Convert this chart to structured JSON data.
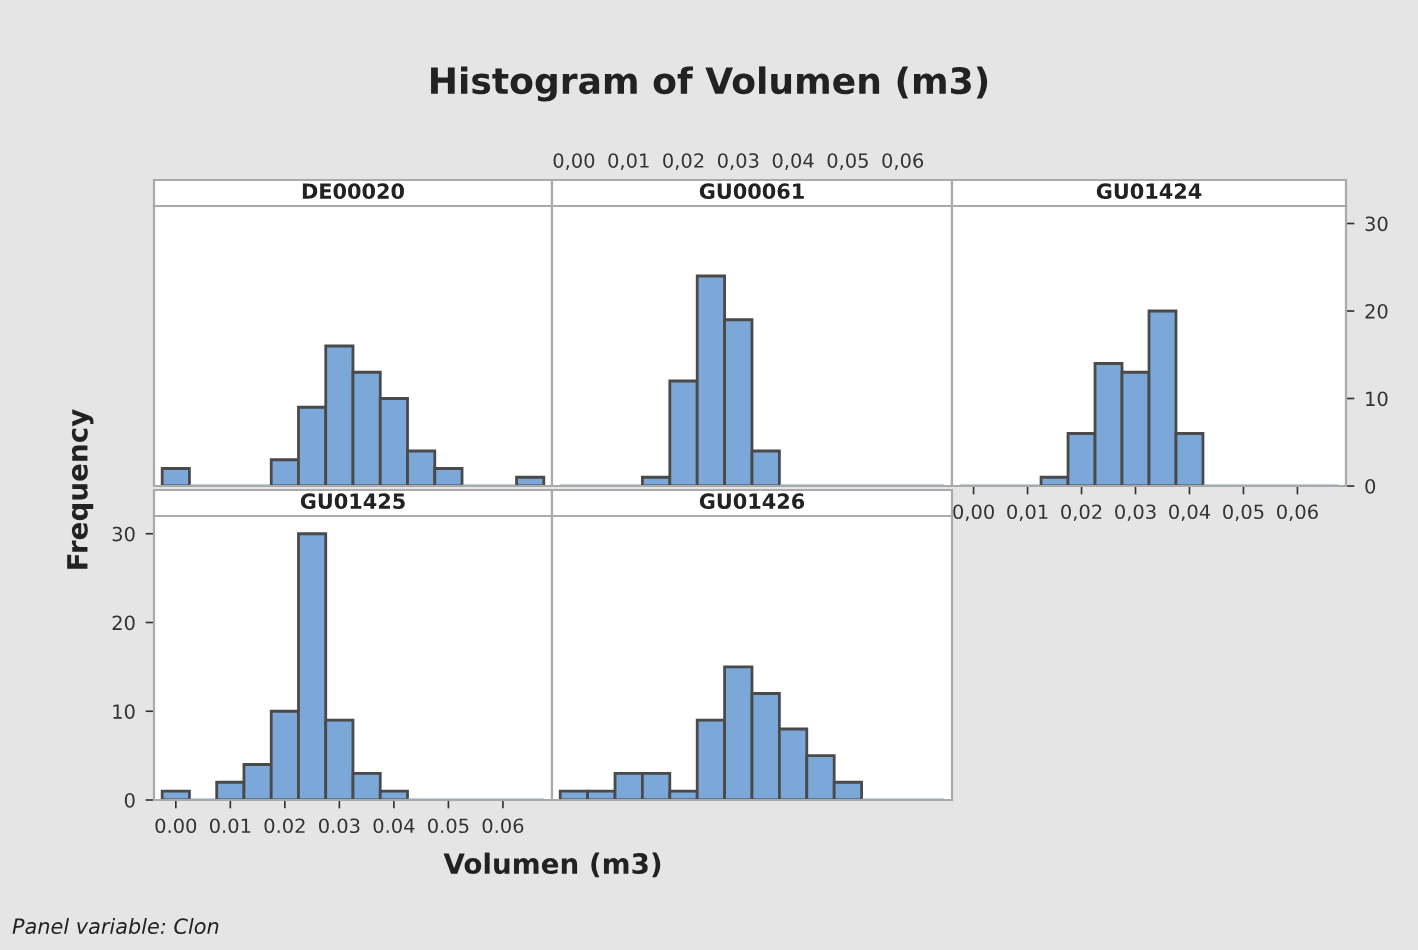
{
  "chart_data": [
    {
      "type": "histogram",
      "title": "Histogram of Volumen (m3)",
      "subtitle": "DE00020",
      "xlabel": "Volumen (m3)",
      "ylabel": "Frequency",
      "annotations": [
        "Panel variable: Clon"
      ],
      "color": "#7ba7d9",
      "bins": [
        -0.0025,
        0.0025,
        0.0075,
        0.0125,
        0.0175,
        0.0225,
        0.0275,
        0.0325,
        0.0375,
        0.0425,
        0.0475,
        0.0525,
        0.0575,
        0.0625,
        0.0675
      ],
      "values": [
        2,
        0,
        0,
        0,
        3,
        9,
        16,
        13,
        10,
        4,
        2,
        0,
        0,
        1
      ],
      "xlim": [
        -0.004,
        0.069
      ],
      "ylim": [
        0,
        32
      ],
      "tick_labels": false,
      "grid": false
    },
    {
      "type": "histogram",
      "title": "GU00061",
      "color": "#7ba7d9",
      "bins": [
        -0.0025,
        0.0025,
        0.0075,
        0.0125,
        0.0175,
        0.0225,
        0.0275,
        0.0325,
        0.0375,
        0.0425,
        0.0475,
        0.0525,
        0.0575,
        0.0625,
        0.0675
      ],
      "values": [
        0,
        0,
        0,
        1,
        12,
        24,
        19,
        4,
        0,
        0,
        0,
        0,
        0,
        0
      ],
      "ylim": [
        0,
        32
      ],
      "xlim": [
        -0.004,
        0.069
      ],
      "xticks": [
        {
          "value": 0,
          "label": "0,00"
        },
        {
          "value": 0.01,
          "label": "0,01"
        },
        {
          "value": 0.02,
          "label": "0,02"
        },
        {
          "value": 0.03,
          "label": "0,03"
        },
        {
          "value": 0.04,
          "label": "0,04"
        },
        {
          "value": 0.05,
          "label": "0,05"
        },
        {
          "value": 0.06,
          "label": "0,06"
        }
      ],
      "tick_labels": "x",
      "grid": false
    },
    {
      "type": "histogram",
      "title": "GU01424",
      "color": "#7ba7d9",
      "bins": [
        -0.0025,
        0.0025,
        0.0075,
        0.0125,
        0.0175,
        0.0225,
        0.0275,
        0.0325,
        0.0375,
        0.0425,
        0.0475,
        0.0525,
        0.0575,
        0.0625,
        0.0675
      ],
      "values": [
        0,
        0,
        0,
        1,
        6,
        14,
        13,
        20,
        6,
        0,
        0,
        0,
        0,
        0
      ],
      "xlim": [
        -0.004,
        0.069
      ],
      "xticks": [
        {
          "value": 0,
          "label": "0,00"
        },
        {
          "value": 0.01,
          "label": "0,01"
        },
        {
          "value": 0.02,
          "label": "0,02"
        },
        {
          "value": 0.03,
          "label": "0,03"
        },
        {
          "value": 0.04,
          "label": "0,04"
        },
        {
          "value": 0.05,
          "label": "0,05"
        },
        {
          "value": 0.06,
          "label": "0,06"
        }
      ],
      "ylim": [
        0,
        32
      ],
      "yticks": [
        0,
        10,
        20,
        30
      ],
      "tick_labels": "x y",
      "grid": false
    },
    {
      "type": "histogram",
      "title": "GU01425",
      "color": "#7ba7d9",
      "bins": [
        -0.0025,
        0.0025,
        0.0075,
        0.0125,
        0.0175,
        0.0225,
        0.0275,
        0.0325,
        0.0375,
        0.0425,
        0.0475,
        0.0525,
        0.0575,
        0.0625,
        0.0675
      ],
      "values": [
        1,
        0,
        2,
        4,
        10,
        30,
        9,
        3,
        1,
        0,
        0,
        0,
        0,
        0
      ],
      "xlim": [
        -0.004,
        0.069
      ],
      "ylim": [
        0,
        32
      ],
      "xticks": [
        {
          "value": 0,
          "label": "0.00"
        },
        {
          "value": 0.01,
          "label": "0.01"
        },
        {
          "value": 0.02,
          "label": "0.02"
        },
        {
          "value": 0.03,
          "label": "0.03"
        },
        {
          "value": 0.04,
          "label": "0.04"
        },
        {
          "value": 0.05,
          "label": "0.05"
        },
        {
          "value": 0.06,
          "label": "0.06"
        }
      ],
      "yticks": [
        0,
        10,
        20,
        30
      ],
      "tick_labels": "x y",
      "grid": false
    },
    {
      "type": "histogram",
      "title": "GU01426",
      "color": "#7ba7d9",
      "bins": [
        -0.0025,
        0.0025,
        0.0075,
        0.0125,
        0.0175,
        0.0225,
        0.0275,
        0.0325,
        0.0375,
        0.0425,
        0.0475,
        0.0525,
        0.0575,
        0.0625,
        0.0675
      ],
      "values": [
        1,
        1,
        3,
        3,
        1,
        9,
        15,
        12,
        8,
        5,
        2,
        0,
        0,
        0
      ],
      "xlim": [
        -0.004,
        0.069
      ],
      "ylim": [
        0,
        32
      ],
      "tick_labels": false,
      "grid": false
    }
  ]
}
